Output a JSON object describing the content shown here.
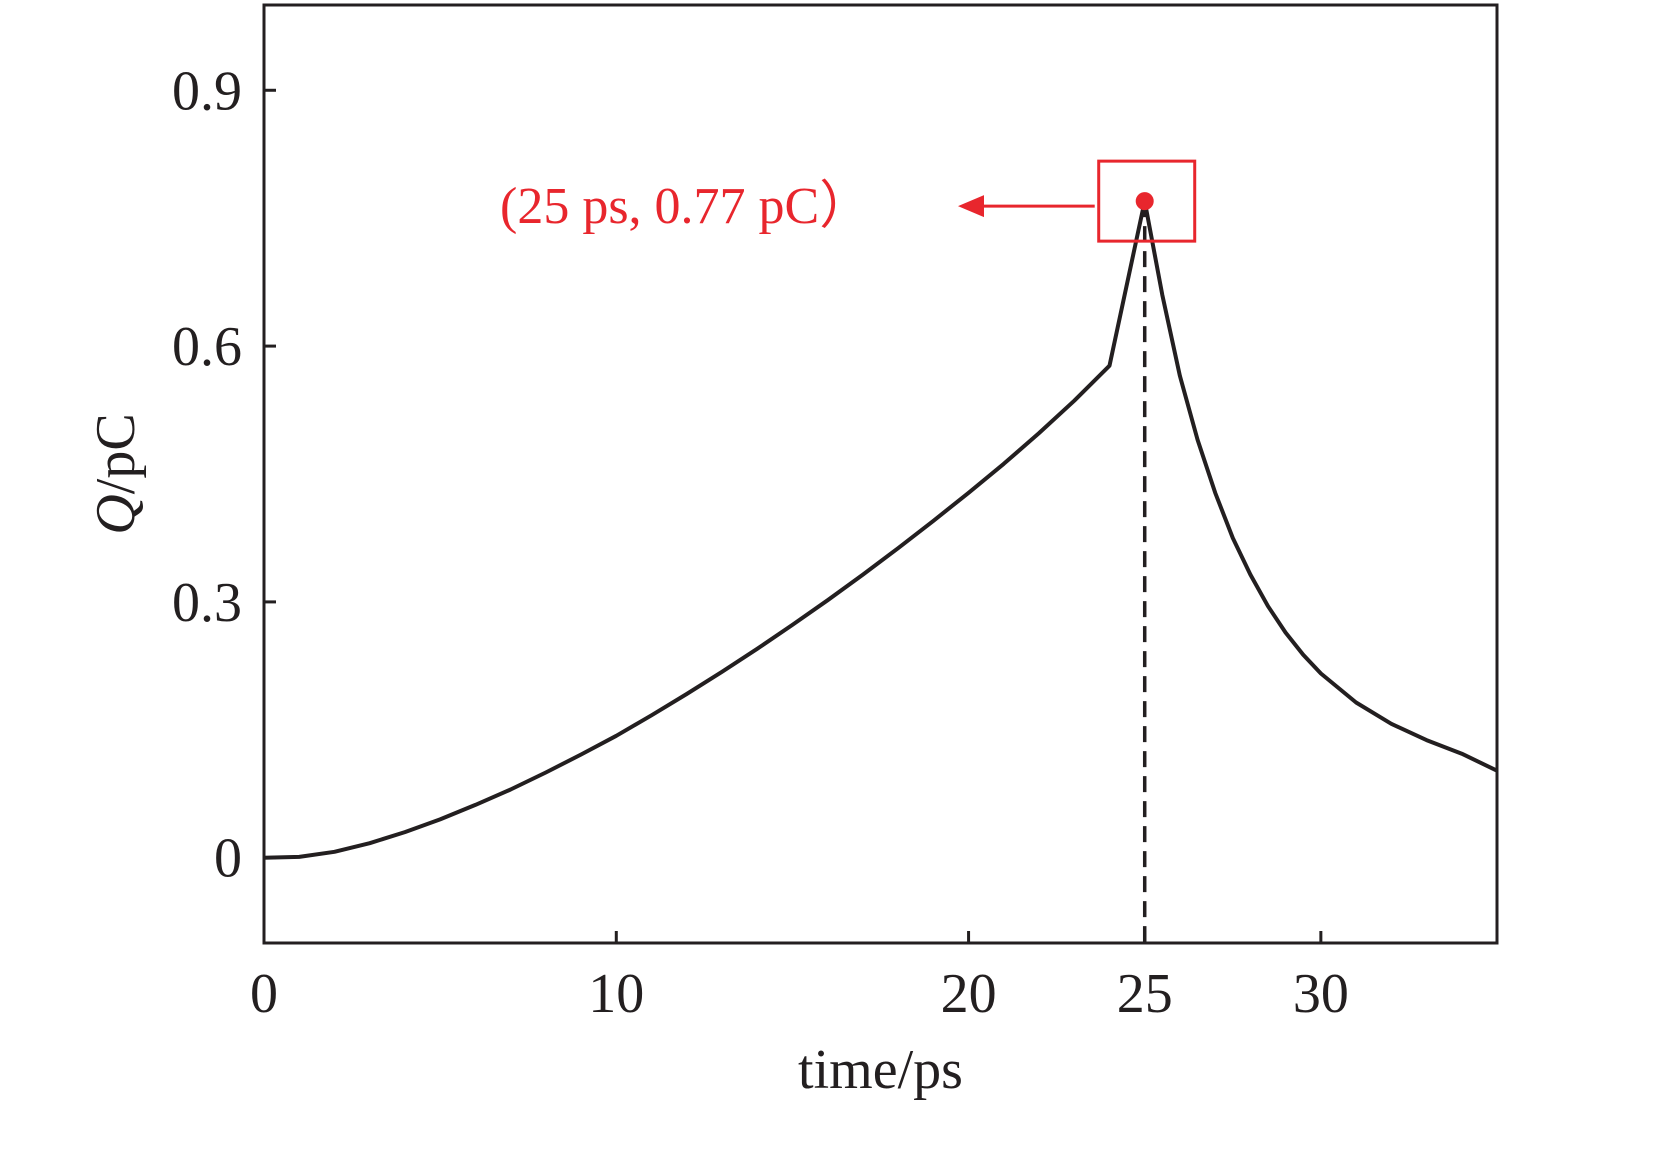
{
  "chart_data": {
    "type": "line",
    "xlabel": "time/ps",
    "ylabel_symbol": "Q",
    "ylabel_unit": "/pC",
    "xlim": [
      0,
      35
    ],
    "ylim": [
      -0.1,
      1.0
    ],
    "x_ticks": [
      0,
      10,
      20,
      25,
      30
    ],
    "y_ticks": [
      0,
      0.3,
      0.6,
      0.9
    ],
    "x_tick_labels": [
      "0",
      "10",
      "20",
      "25",
      "30"
    ],
    "y_tick_labels": [
      "0",
      "0.3",
      "0.6",
      "0.9"
    ],
    "grid": false,
    "series": [
      {
        "color": "#231f20",
        "x": [
          0,
          1,
          2,
          3,
          4,
          5,
          6,
          7,
          8,
          9,
          10,
          11,
          12,
          13,
          14,
          15,
          16,
          17,
          18,
          19,
          20,
          21,
          22,
          23,
          24,
          25,
          25.5,
          26,
          26.5,
          27,
          27.5,
          28,
          28.5,
          29,
          29.5,
          30,
          31,
          32,
          33,
          34,
          35
        ],
        "y": [
          0,
          0.001,
          0.007,
          0.017,
          0.03,
          0.045,
          0.062,
          0.08,
          0.1,
          0.121,
          0.143,
          0.167,
          0.192,
          0.218,
          0.245,
          0.273,
          0.302,
          0.332,
          0.363,
          0.395,
          0.428,
          0.462,
          0.498,
          0.536,
          0.577,
          0.77,
          0.66,
          0.565,
          0.49,
          0.428,
          0.375,
          0.332,
          0.295,
          0.264,
          0.238,
          0.216,
          0.182,
          0.157,
          0.138,
          0.122,
          0.102
        ]
      }
    ],
    "peak": {
      "x": 25,
      "y": 0.77,
      "color": "#e8262d",
      "label": "(25 ps, 0.77 pC）"
    }
  }
}
